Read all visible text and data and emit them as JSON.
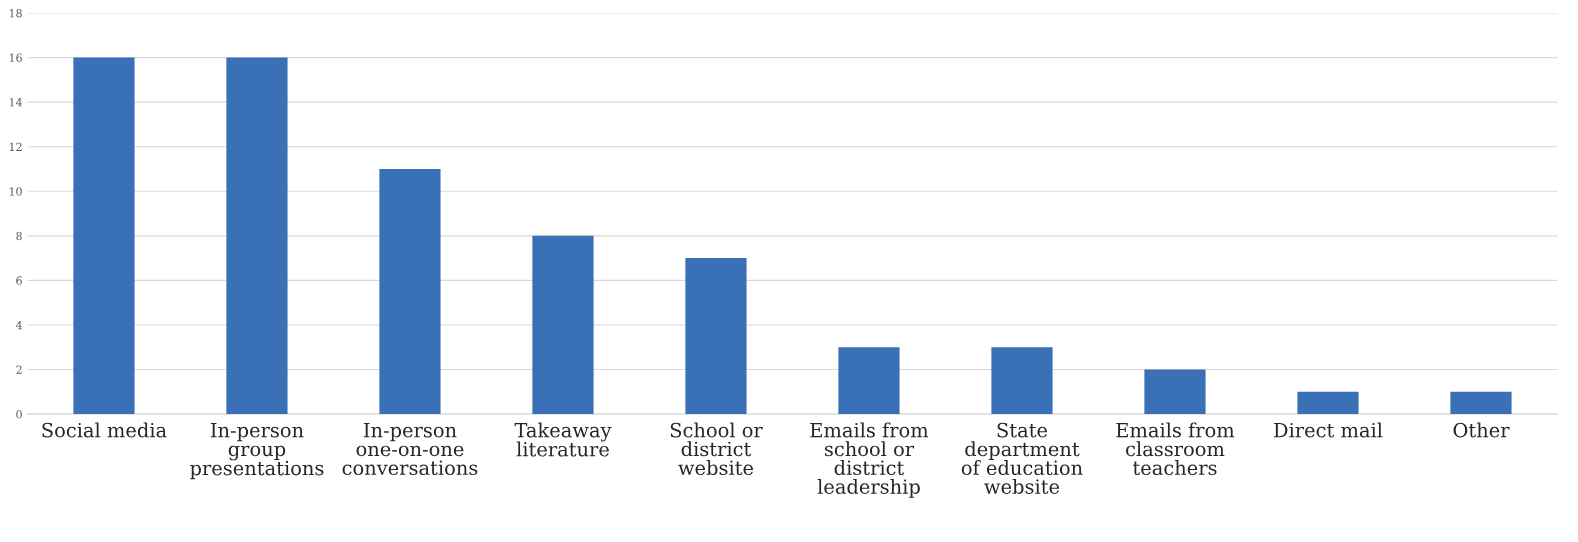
{
  "chart_data": {
    "type": "bar",
    "categories": [
      "Social media",
      "In-person\ngroup\npresentations",
      "In-person\none-on-one\nconversations",
      "Takeaway\nliterature",
      "School or\ndistrict\nwebsite",
      "Emails from\nschool or\ndistrict\nleadership",
      "State\ndepartment\nof education\nwebsite",
      "Emails from\nclassroom\nteachers",
      "Direct mail",
      "Other"
    ],
    "values": [
      16,
      16,
      11,
      8,
      7,
      3,
      3,
      2,
      1,
      1
    ],
    "color": "#3a70b5",
    "ylim": [
      0,
      18
    ],
    "yticks": [
      0,
      2,
      4,
      6,
      8,
      10,
      12,
      14,
      16,
      18
    ],
    "grid": "y",
    "legend": false
  }
}
